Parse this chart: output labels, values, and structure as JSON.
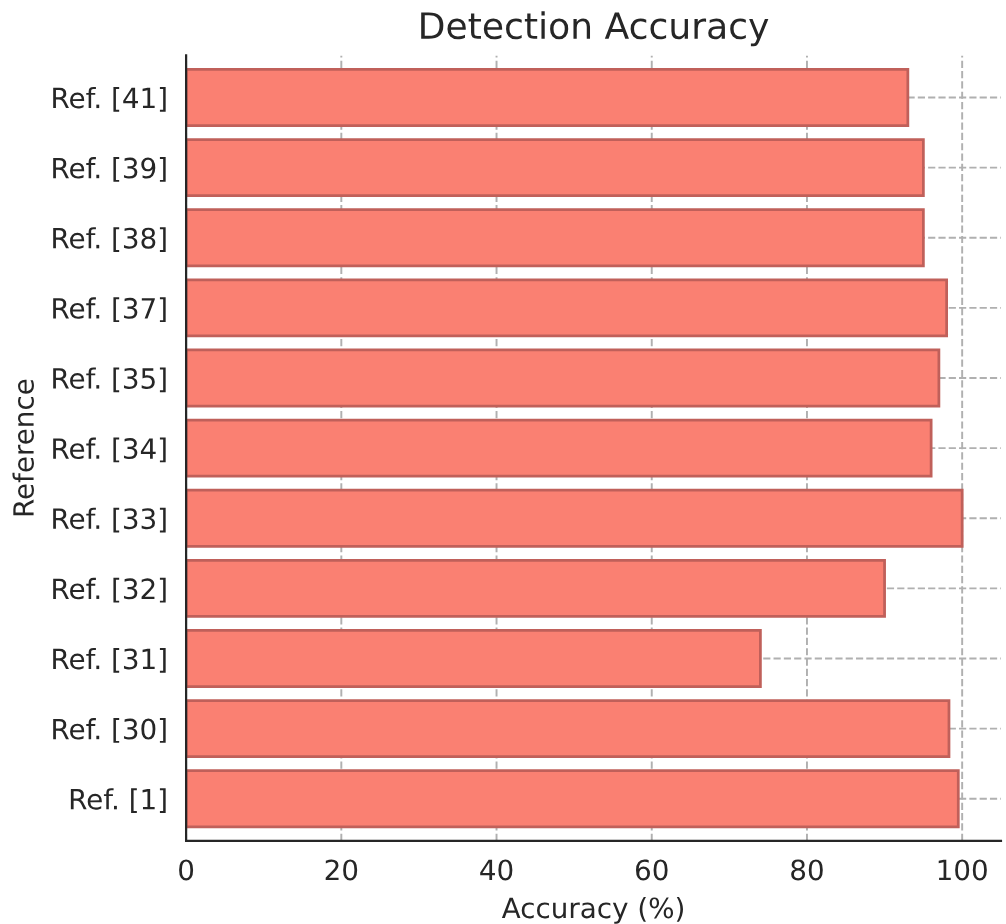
{
  "chart_data": {
    "type": "bar",
    "orientation": "horizontal",
    "title": "Detection Accuracy",
    "xlabel": "Accuracy (%)",
    "ylabel": "Reference",
    "categories": [
      "Ref. [41]",
      "Ref. [39]",
      "Ref. [38]",
      "Ref. [37]",
      "Ref. [35]",
      "Ref. [34]",
      "Ref. [33]",
      "Ref. [32]",
      "Ref. [31]",
      "Ref. [30]",
      "Ref. [1]"
    ],
    "values": [
      93,
      95,
      95,
      98,
      97,
      96,
      100,
      90,
      74,
      98.3,
      99.5
    ],
    "color": "#fa8072",
    "xlim": [
      0,
      105
    ],
    "xticks": [
      0,
      20,
      40,
      60,
      80,
      100
    ],
    "grid": true
  }
}
